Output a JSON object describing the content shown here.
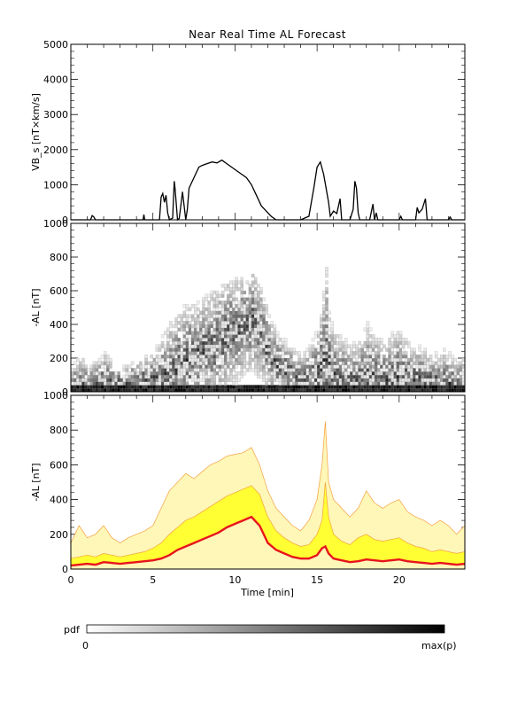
{
  "title": "Near Real Time AL Forecast",
  "xaxis": {
    "label": "Time [min]",
    "range": [
      0,
      24
    ],
    "ticks": [
      0,
      5,
      10,
      15,
      20
    ]
  },
  "colorbar": {
    "label": "pdf",
    "min_label": "0",
    "max_label": "max(p)"
  },
  "colors": {
    "line": "#000000",
    "median": "#e8141c",
    "band_outer": "#fff7b8",
    "band_inner": "#ffff33",
    "band_edge": "#f5a040"
  },
  "chart_data": [
    {
      "type": "line",
      "panel": "VBs",
      "ylabel": "VB_s [nT×km/s]",
      "ylim": [
        0,
        5000
      ],
      "yticks": [
        0,
        1000,
        2000,
        3000,
        4000,
        5000
      ],
      "x": [
        0,
        1.2,
        1.3,
        1.4,
        1.5,
        4.4,
        4.45,
        4.5,
        5.4,
        5.5,
        5.6,
        5.7,
        5.8,
        5.9,
        6.0,
        6.2,
        6.3,
        6.35,
        6.5,
        6.6,
        6.7,
        6.8,
        7.0,
        7.1,
        7.2,
        7.4,
        7.6,
        7.8,
        8.0,
        8.3,
        8.6,
        8.9,
        9.2,
        9.5,
        9.8,
        10.1,
        10.4,
        10.7,
        11.0,
        11.2,
        11.4,
        11.6,
        11.8,
        12.0,
        12.2,
        12.5,
        13.0,
        14.0,
        14.5,
        14.8,
        15.0,
        15.2,
        15.4,
        15.55,
        15.7,
        15.8,
        16.0,
        16.2,
        16.4,
        16.5,
        17.0,
        17.2,
        17.3,
        17.4,
        17.5,
        17.6,
        17.8,
        18.2,
        18.4,
        18.5,
        18.6,
        18.7,
        19.0,
        20.0,
        20.1,
        20.2,
        20.5,
        21.0,
        21.1,
        21.2,
        21.4,
        21.6,
        21.7,
        21.8,
        22.0,
        23.0,
        23.1,
        23.2,
        24.0
      ],
      "y": [
        0,
        0,
        120,
        80,
        0,
        0,
        150,
        0,
        0,
        650,
        750,
        500,
        700,
        200,
        0,
        50,
        1100,
        900,
        0,
        40,
        400,
        800,
        0,
        300,
        900,
        1100,
        1300,
        1500,
        1550,
        1600,
        1650,
        1620,
        1700,
        1600,
        1500,
        1400,
        1300,
        1200,
        1000,
        800,
        600,
        400,
        300,
        200,
        100,
        0,
        0,
        0,
        100,
        900,
        1500,
        1650,
        1300,
        900,
        500,
        100,
        250,
        180,
        600,
        0,
        0,
        300,
        1100,
        900,
        200,
        0,
        0,
        0,
        450,
        0,
        200,
        0,
        0,
        0,
        100,
        0,
        0,
        0,
        350,
        200,
        300,
        600,
        0,
        0,
        0,
        0,
        80,
        0,
        0
      ]
    },
    {
      "type": "heatmap",
      "panel": "AL probability",
      "ylabel": "-AL [nT]",
      "ylim": [
        0,
        1000
      ],
      "yticks": [
        0,
        200,
        400,
        600,
        800,
        1000
      ]
    },
    {
      "type": "area",
      "panel": "AL forecast",
      "ylabel": "-AL [nT]",
      "ylim": [
        0,
        1000
      ],
      "yticks": [
        0,
        200,
        400,
        600,
        800,
        1000
      ],
      "x": [
        0,
        0.5,
        1.0,
        1.5,
        2.0,
        2.5,
        3.0,
        3.5,
        4.0,
        4.5,
        5.0,
        5.5,
        6.0,
        6.5,
        7.0,
        7.5,
        8.0,
        8.5,
        9.0,
        9.5,
        10.0,
        10.5,
        11.0,
        11.5,
        12.0,
        12.5,
        13.0,
        13.5,
        14.0,
        14.5,
        15.0,
        15.3,
        15.5,
        15.7,
        16.0,
        16.5,
        17.0,
        17.5,
        18.0,
        18.5,
        19.0,
        19.5,
        20.0,
        20.5,
        21.0,
        21.5,
        22.0,
        22.5,
        23.0,
        23.5,
        24.0
      ],
      "median": [
        20,
        25,
        30,
        25,
        40,
        35,
        30,
        35,
        40,
        45,
        50,
        60,
        80,
        110,
        130,
        150,
        170,
        190,
        210,
        240,
        260,
        280,
        300,
        250,
        150,
        110,
        90,
        70,
        60,
        60,
        80,
        120,
        130,
        90,
        60,
        50,
        40,
        45,
        55,
        50,
        45,
        50,
        55,
        45,
        40,
        35,
        30,
        35,
        30,
        25,
        30
      ],
      "inner_upper": [
        60,
        70,
        80,
        70,
        90,
        80,
        70,
        80,
        90,
        100,
        120,
        150,
        200,
        240,
        280,
        300,
        330,
        360,
        390,
        420,
        440,
        460,
        480,
        430,
        300,
        220,
        180,
        150,
        130,
        140,
        200,
        280,
        500,
        300,
        200,
        160,
        140,
        180,
        200,
        170,
        160,
        170,
        180,
        150,
        130,
        120,
        100,
        110,
        100,
        90,
        100
      ],
      "outer_upper": [
        150,
        250,
        180,
        200,
        250,
        180,
        150,
        180,
        200,
        220,
        250,
        350,
        450,
        500,
        550,
        520,
        560,
        600,
        620,
        650,
        660,
        670,
        700,
        600,
        450,
        350,
        300,
        250,
        220,
        280,
        400,
        600,
        850,
        500,
        400,
        350,
        300,
        350,
        450,
        380,
        350,
        380,
        400,
        330,
        300,
        280,
        250,
        280,
        250,
        200,
        250
      ]
    }
  ]
}
